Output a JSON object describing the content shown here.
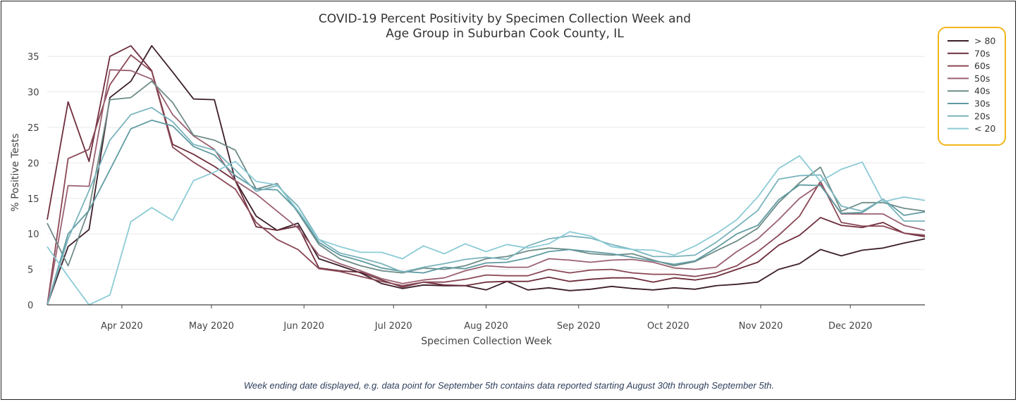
{
  "colors": {
    "legend_border": "#f2b51a",
    "axis": "#444444",
    "grid": "#e8e8e8",
    "text": "#444444",
    "footnote": "#2f3f5c"
  },
  "footnote": "Week ending date displayed, e.g. data point for September 5th contains data reported starting August 30th through September 5th.",
  "chart_data": {
    "type": "line",
    "title": "COVID-19 Percent Positivity by Specimen Collection Week and Age Group in Suburban Cook County, IL",
    "title_lines": [
      "COVID-19 Percent Positivity by Specimen Collection Week and",
      "Age Group in Suburban Cook County, IL"
    ],
    "xlabel": "Specimen Collection Week",
    "ylabel": "% Positive Tests",
    "ylim": [
      0,
      36
    ],
    "yticks": [
      0,
      5,
      10,
      15,
      20,
      25,
      30,
      35
    ],
    "xticks": [
      {
        "label": "Apr 2020",
        "date": "2020-04-01"
      },
      {
        "label": "May 2020",
        "date": "2020-05-01"
      },
      {
        "label": "Jun 2020",
        "date": "2020-06-01"
      },
      {
        "label": "Jul 2020",
        "date": "2020-07-01"
      },
      {
        "label": "Aug 2020",
        "date": "2020-08-01"
      },
      {
        "label": "Sep 2020",
        "date": "2020-09-01"
      },
      {
        "label": "Oct 2020",
        "date": "2020-10-01"
      },
      {
        "label": "Nov 2020",
        "date": "2020-11-01"
      },
      {
        "label": "Dec 2020",
        "date": "2020-12-01"
      }
    ],
    "xlim": [
      "2020-03-07",
      "2020-12-26"
    ],
    "x": [
      "2020-03-07",
      "2020-03-14",
      "2020-03-21",
      "2020-03-28",
      "2020-04-04",
      "2020-04-11",
      "2020-04-18",
      "2020-04-25",
      "2020-05-02",
      "2020-05-09",
      "2020-05-16",
      "2020-05-23",
      "2020-05-30",
      "2020-06-06",
      "2020-06-13",
      "2020-06-20",
      "2020-06-27",
      "2020-07-04",
      "2020-07-11",
      "2020-07-18",
      "2020-07-25",
      "2020-08-01",
      "2020-08-08",
      "2020-08-15",
      "2020-08-22",
      "2020-08-29",
      "2020-09-05",
      "2020-09-12",
      "2020-09-19",
      "2020-09-26",
      "2020-10-03",
      "2020-10-10",
      "2020-10-17",
      "2020-10-24",
      "2020-10-31",
      "2020-11-07",
      "2020-11-14",
      "2020-11-21",
      "2020-11-28",
      "2020-12-05",
      "2020-12-12",
      "2020-12-19",
      "2020-12-26"
    ],
    "grid": true,
    "legend_position": "top-right",
    "series": [
      {
        "name": "> 80",
        "color": "#3b1e2a",
        "values": [
          0,
          8.2,
          10.6,
          29.2,
          31.5,
          36.5,
          32.8,
          29,
          28.9,
          17.5,
          12.5,
          10.5,
          11.5,
          6.5,
          5.5,
          4.5,
          3,
          2.3,
          2.8,
          2.7,
          2.7,
          2.1,
          3.3,
          2.1,
          2.4,
          2,
          2.2,
          2.6,
          2.3,
          2.1,
          2.4,
          2.2,
          2.7,
          2.9,
          3.2,
          5,
          5.8,
          7.8,
          6.9,
          7.7,
          8,
          8.7,
          9.3
        ]
      },
      {
        "name": "70s",
        "color": "#6e2d3c",
        "values": [
          12,
          28.6,
          20.2,
          35,
          36.5,
          33,
          22.6,
          21.2,
          19.5,
          17.5,
          11,
          10.5,
          11.1,
          5.2,
          4.8,
          4.6,
          3.5,
          2.5,
          3.2,
          2.8,
          2.7,
          3.2,
          3.3,
          3.3,
          3.9,
          3.3,
          3.6,
          3.8,
          3.8,
          3.2,
          3.8,
          3.5,
          4,
          5,
          6,
          8.4,
          9.8,
          12.3,
          11.2,
          10.9,
          11.6,
          10.1,
          9.6
        ]
      },
      {
        "name": "60s",
        "color": "#8a4755",
        "values": [
          0,
          20.6,
          21.9,
          31,
          35.2,
          32.9,
          22.2,
          20.1,
          18.3,
          16.3,
          11.6,
          9.2,
          7.8,
          5.1,
          4.7,
          4,
          3.3,
          2.7,
          3.2,
          3.2,
          3.6,
          4.2,
          4.1,
          4.1,
          5,
          4.5,
          4.9,
          5,
          4.5,
          4.3,
          4.3,
          4,
          4.5,
          5.5,
          7.5,
          9.8,
          12.5,
          17.4,
          11.6,
          11.1,
          11.1,
          10.1,
          9.8
        ]
      },
      {
        "name": "50s",
        "color": "#9a6070",
        "values": [
          0,
          16.8,
          16.7,
          33.1,
          33,
          31.8,
          26.8,
          23.8,
          21.9,
          17.5,
          15.6,
          13.2,
          10.8,
          7,
          5.8,
          4.8,
          3.7,
          3,
          3.5,
          3.8,
          4.8,
          5.5,
          5.3,
          5.3,
          6.5,
          6.3,
          6,
          6.3,
          6.4,
          6,
          5.2,
          5,
          5.3,
          7.5,
          9.3,
          12,
          15,
          17,
          12.8,
          12.8,
          12.8,
          11.2,
          10.5
        ]
      },
      {
        "name": "40s",
        "color": "#6e8c88",
        "values": [
          11.5,
          5.5,
          13.5,
          28.9,
          29.2,
          31.5,
          28.5,
          23.9,
          23.2,
          21.8,
          16.3,
          17.1,
          13,
          8.5,
          6.5,
          5.5,
          4.8,
          4.5,
          5.2,
          5,
          5.5,
          6.5,
          6.8,
          7.6,
          8,
          7.8,
          7.2,
          7,
          7.2,
          6.3,
          5.5,
          6.1,
          7.6,
          9,
          10.8,
          14.4,
          17.2,
          19.4,
          13.2,
          14.4,
          14.4,
          13.6,
          13.2
        ]
      },
      {
        "name": "30s",
        "color": "#5f9aa1",
        "values": [
          0,
          10,
          13.3,
          19,
          24.8,
          26,
          25.2,
          22.3,
          21.1,
          18.2,
          16.3,
          16.2,
          13.2,
          8.8,
          7,
          6.2,
          5.2,
          4.7,
          4.5,
          5.3,
          5.1,
          5.9,
          6,
          6.6,
          7.5,
          7.8,
          7.5,
          7.2,
          6.7,
          6.2,
          5.7,
          6.2,
          8,
          10,
          11.2,
          14.8,
          16.9,
          16.8,
          12.9,
          13,
          14.9,
          12.6,
          13.1
        ]
      },
      {
        "name": "20s",
        "color": "#7ab3bc",
        "values": [
          0,
          9.3,
          16.1,
          23.2,
          26.8,
          27.8,
          25.8,
          22.6,
          21.8,
          19,
          16,
          16.8,
          13.9,
          9.2,
          7.3,
          6.6,
          5.8,
          4.6,
          5.3,
          5.8,
          6.4,
          6.7,
          6.4,
          8.3,
          9.3,
          9.7,
          9.4,
          8.5,
          7.8,
          6.8,
          6.8,
          7,
          8.8,
          11,
          13.3,
          17.7,
          18.2,
          18.3,
          13.9,
          13.2,
          14.9,
          11.8,
          11.8
        ]
      },
      {
        "name": "< 20",
        "color": "#8ccbd6",
        "values": [
          8.2,
          4,
          0,
          1.4,
          11.7,
          13.7,
          11.9,
          17.5,
          18.7,
          20.2,
          17.4,
          16.9,
          13.3,
          9.2,
          8.2,
          7.4,
          7.4,
          6.5,
          8.3,
          7.2,
          8.6,
          7.5,
          8.5,
          8,
          8.6,
          10.3,
          9.7,
          8.2,
          7.8,
          7.7,
          7,
          8.3,
          10,
          12,
          15.2,
          19.2,
          21,
          17.4,
          19.1,
          20.1,
          14.5,
          15.2,
          14.7
        ]
      }
    ]
  }
}
